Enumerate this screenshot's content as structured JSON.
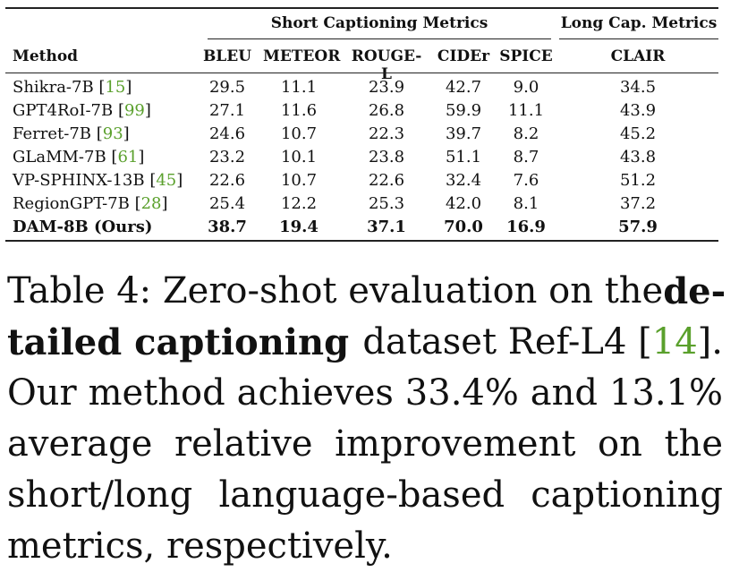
{
  "table": {
    "group_short": "Short Captioning Metrics",
    "group_long": "Long Cap. Metrics",
    "col_method": "Method",
    "cols": [
      "BLEU",
      "METEOR",
      "ROUGE-L",
      "CIDEr",
      "SPICE",
      "CLAIR"
    ],
    "rows": [
      {
        "name": "Shikra-7B",
        "cite": "15",
        "vals": [
          "29.5",
          "11.1",
          "23.9",
          "42.7",
          "9.0",
          "34.5"
        ]
      },
      {
        "name": "GPT4RoI-7B",
        "cite": "99",
        "vals": [
          "27.1",
          "11.6",
          "26.8",
          "59.9",
          "11.1",
          "43.9"
        ]
      },
      {
        "name": "Ferret-7B",
        "cite": "93",
        "vals": [
          "24.6",
          "10.7",
          "22.3",
          "39.7",
          "8.2",
          "45.2"
        ]
      },
      {
        "name": "GLaMM-7B",
        "cite": "61",
        "vals": [
          "23.2",
          "10.1",
          "23.8",
          "51.1",
          "8.7",
          "43.8"
        ]
      },
      {
        "name": "VP-SPHINX-13B",
        "cite": "45",
        "vals": [
          "22.6",
          "10.7",
          "22.6",
          "32.4",
          "7.6",
          "51.2"
        ]
      },
      {
        "name": "RegionGPT-7B",
        "cite": "28",
        "vals": [
          "25.4",
          "12.2",
          "25.3",
          "42.0",
          "8.1",
          "37.2"
        ]
      },
      {
        "name": "DAM-8B (Ours)",
        "cite": "",
        "vals": [
          "38.7",
          "19.4",
          "37.1",
          "70.0",
          "16.9",
          "57.9"
        ]
      }
    ]
  },
  "caption": {
    "l1a": "Table 4: Zero-shot evaluation on the",
    "l1b": "de-",
    "l2a": "tailed captioning",
    "l2b": "dataset Ref-L4 [",
    "l2cite": "14",
    "l2c": "].",
    "l3": "Our method achieves 33.4% and 13.1%",
    "l4": "average relative improvement on the",
    "l5": "short/long language-based captioning",
    "l6": "metrics, respectively."
  }
}
